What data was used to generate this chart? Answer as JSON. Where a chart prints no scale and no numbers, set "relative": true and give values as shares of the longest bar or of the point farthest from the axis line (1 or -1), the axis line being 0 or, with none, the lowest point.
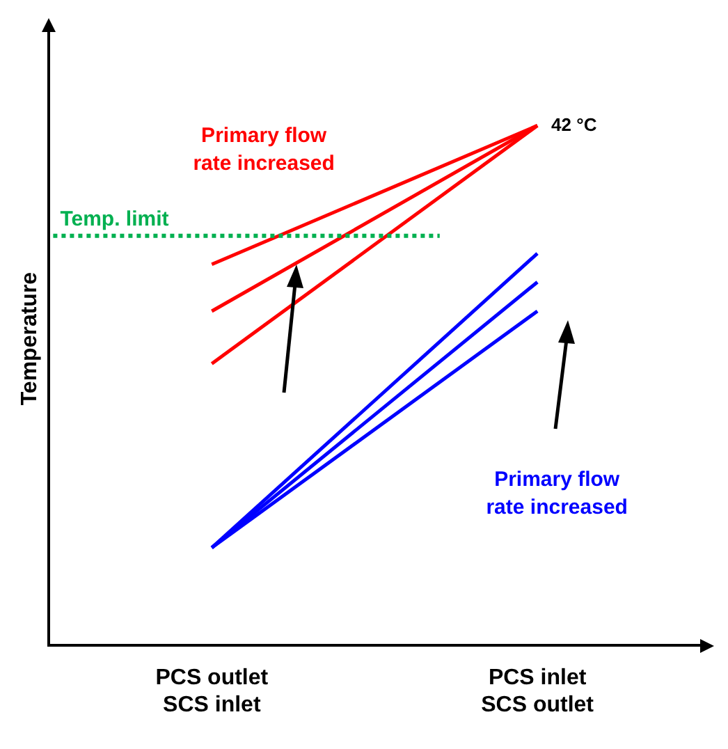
{
  "chart_data": {
    "type": "line",
    "relative": true,
    "ylabel": "Temperature",
    "categories": [
      "PCS outlet\nSCS inlet",
      "PCS inlet\nSCS outlet"
    ],
    "series": [
      {
        "color": "#ff0000",
        "values": [
          0.733,
          1
        ]
      },
      {
        "color": "#ff0000",
        "values": [
          0.643,
          1
        ]
      },
      {
        "color": "#ff0000",
        "values": [
          0.542,
          1
        ]
      },
      {
        "color": "#0000ff",
        "values": [
          0.188,
          0.754
        ]
      },
      {
        "color": "#0000ff",
        "values": [
          0.188,
          0.699
        ]
      },
      {
        "color": "#0000ff",
        "values": [
          0.188,
          0.643
        ]
      }
    ],
    "ref_lines": [
      {
        "axis": "y",
        "value": 0.788,
        "label": "Temp. limit",
        "color": "#00b050",
        "line_style": "dotted"
      }
    ],
    "annotations": [
      {
        "text": "42 °C",
        "x": "PCS inlet\nSCS outlet",
        "y": 1
      },
      "Primary flow\nrate increased",
      "Primary flow\nrate increased"
    ],
    "legend": false,
    "grid": false,
    "marker": "none",
    "line_style": "solid"
  }
}
